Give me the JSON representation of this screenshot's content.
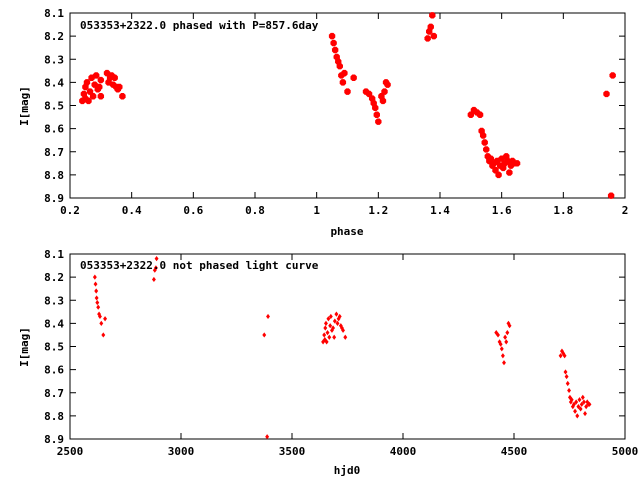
{
  "chart_data": [
    {
      "type": "scatter",
      "title": "053353+2322.0 phased with P=857.6day",
      "xlabel": "phase",
      "ylabel": "I[mag]",
      "xlim": [
        0.2,
        2.0
      ],
      "ylim": [
        8.1,
        8.9
      ],
      "y_inverted": true,
      "grid": false,
      "marker": "star",
      "color": "#ff0000",
      "xticks": [
        "0.2",
        "0.4",
        "0.6",
        "0.8",
        "1",
        "1.2",
        "1.4",
        "1.6",
        "1.8",
        "2"
      ],
      "yticks": [
        "8.1",
        "8.2",
        "8.3",
        "8.4",
        "8.5",
        "8.6",
        "8.7",
        "8.8",
        "8.9"
      ],
      "points": [
        [
          0.24,
          8.48
        ],
        [
          0.245,
          8.45
        ],
        [
          0.25,
          8.47
        ],
        [
          0.25,
          8.42
        ],
        [
          0.255,
          8.4
        ],
        [
          0.26,
          8.48
        ],
        [
          0.265,
          8.44
        ],
        [
          0.27,
          8.38
        ],
        [
          0.275,
          8.46
        ],
        [
          0.28,
          8.41
        ],
        [
          0.285,
          8.37
        ],
        [
          0.29,
          8.43
        ],
        [
          0.295,
          8.42
        ],
        [
          0.3,
          8.46
        ],
        [
          0.3,
          8.39
        ],
        [
          0.32,
          8.36
        ],
        [
          0.325,
          8.4
        ],
        [
          0.33,
          8.38
        ],
        [
          0.335,
          8.37
        ],
        [
          0.34,
          8.41
        ],
        [
          0.345,
          8.38
        ],
        [
          0.35,
          8.42
        ],
        [
          0.355,
          8.43
        ],
        [
          0.36,
          8.42
        ],
        [
          0.37,
          8.46
        ],
        [
          1.05,
          8.2
        ],
        [
          1.055,
          8.23
        ],
        [
          1.06,
          8.26
        ],
        [
          1.065,
          8.29
        ],
        [
          1.07,
          8.31
        ],
        [
          1.075,
          8.33
        ],
        [
          1.08,
          8.37
        ],
        [
          1.085,
          8.4
        ],
        [
          1.09,
          8.36
        ],
        [
          1.1,
          8.44
        ],
        [
          1.12,
          8.38
        ],
        [
          1.16,
          8.44
        ],
        [
          1.17,
          8.45
        ],
        [
          1.18,
          8.47
        ],
        [
          1.185,
          8.49
        ],
        [
          1.19,
          8.51
        ],
        [
          1.195,
          8.54
        ],
        [
          1.2,
          8.57
        ],
        [
          1.21,
          8.46
        ],
        [
          1.215,
          8.48
        ],
        [
          1.22,
          8.44
        ],
        [
          1.225,
          8.4
        ],
        [
          1.23,
          8.41
        ],
        [
          1.36,
          8.21
        ],
        [
          1.365,
          8.18
        ],
        [
          1.37,
          8.16
        ],
        [
          1.375,
          8.11
        ],
        [
          1.38,
          8.2
        ],
        [
          1.5,
          8.54
        ],
        [
          1.51,
          8.52
        ],
        [
          1.52,
          8.53
        ],
        [
          1.53,
          8.54
        ],
        [
          1.535,
          8.61
        ],
        [
          1.54,
          8.63
        ],
        [
          1.545,
          8.66
        ],
        [
          1.55,
          8.69
        ],
        [
          1.555,
          8.72
        ],
        [
          1.56,
          8.74
        ],
        [
          1.565,
          8.73
        ],
        [
          1.57,
          8.76
        ],
        [
          1.575,
          8.75
        ],
        [
          1.58,
          8.78
        ],
        [
          1.585,
          8.74
        ],
        [
          1.59,
          8.8
        ],
        [
          1.595,
          8.76
        ],
        [
          1.6,
          8.73
        ],
        [
          1.605,
          8.77
        ],
        [
          1.61,
          8.75
        ],
        [
          1.615,
          8.72
        ],
        [
          1.62,
          8.74
        ],
        [
          1.625,
          8.79
        ],
        [
          1.63,
          8.76
        ],
        [
          1.635,
          8.74
        ],
        [
          1.64,
          8.75
        ],
        [
          1.65,
          8.75
        ],
        [
          1.94,
          8.45
        ],
        [
          1.955,
          8.89
        ],
        [
          1.96,
          8.37
        ]
      ]
    },
    {
      "type": "scatter",
      "title": "053353+2322.0 not phased light curve",
      "xlabel": "hjd0",
      "ylabel": "I[mag]",
      "xlim": [
        2500,
        5000
      ],
      "ylim": [
        8.1,
        8.9
      ],
      "y_inverted": true,
      "grid": false,
      "marker": "diamond",
      "color": "#ff0000",
      "xticks": [
        "2500",
        "3000",
        "3500",
        "4000",
        "4500",
        "5000"
      ],
      "yticks": [
        "8.1",
        "8.2",
        "8.3",
        "8.4",
        "8.5",
        "8.6",
        "8.7",
        "8.8",
        "8.9"
      ],
      "points": [
        [
          2612,
          8.2
        ],
        [
          2615,
          8.23
        ],
        [
          2618,
          8.26
        ],
        [
          2620,
          8.29
        ],
        [
          2623,
          8.31
        ],
        [
          2627,
          8.33
        ],
        [
          2631,
          8.36
        ],
        [
          2635,
          8.37
        ],
        [
          2641,
          8.4
        ],
        [
          2650,
          8.45
        ],
        [
          2658,
          8.38
        ],
        [
          2878,
          8.21
        ],
        [
          2882,
          8.17
        ],
        [
          2887,
          8.16
        ],
        [
          2890,
          8.12
        ],
        [
          3375,
          8.45
        ],
        [
          3388,
          8.89
        ],
        [
          3392,
          8.37
        ],
        [
          3640,
          8.48
        ],
        [
          3645,
          8.45
        ],
        [
          3648,
          8.47
        ],
        [
          3650,
          8.42
        ],
        [
          3653,
          8.4
        ],
        [
          3656,
          8.48
        ],
        [
          3660,
          8.44
        ],
        [
          3664,
          8.38
        ],
        [
          3668,
          8.46
        ],
        [
          3672,
          8.41
        ],
        [
          3675,
          8.37
        ],
        [
          3680,
          8.43
        ],
        [
          3685,
          8.42
        ],
        [
          3690,
          8.46
        ],
        [
          3693,
          8.39
        ],
        [
          3700,
          8.36
        ],
        [
          3705,
          8.4
        ],
        [
          3710,
          8.38
        ],
        [
          3715,
          8.37
        ],
        [
          3720,
          8.41
        ],
        [
          3725,
          8.42
        ],
        [
          3730,
          8.43
        ],
        [
          3740,
          8.46
        ],
        [
          4420,
          8.44
        ],
        [
          4428,
          8.45
        ],
        [
          4435,
          8.48
        ],
        [
          4440,
          8.49
        ],
        [
          4445,
          8.51
        ],
        [
          4450,
          8.54
        ],
        [
          4455,
          8.57
        ],
        [
          4460,
          8.46
        ],
        [
          4465,
          8.48
        ],
        [
          4470,
          8.44
        ],
        [
          4475,
          8.4
        ],
        [
          4480,
          8.41
        ],
        [
          4710,
          8.54
        ],
        [
          4716,
          8.52
        ],
        [
          4722,
          8.53
        ],
        [
          4728,
          8.54
        ],
        [
          4732,
          8.61
        ],
        [
          4737,
          8.63
        ],
        [
          4742,
          8.66
        ],
        [
          4748,
          8.69
        ],
        [
          4752,
          8.72
        ],
        [
          4756,
          8.74
        ],
        [
          4760,
          8.73
        ],
        [
          4765,
          8.76
        ],
        [
          4770,
          8.75
        ],
        [
          4775,
          8.78
        ],
        [
          4780,
          8.74
        ],
        [
          4785,
          8.8
        ],
        [
          4790,
          8.76
        ],
        [
          4795,
          8.73
        ],
        [
          4800,
          8.77
        ],
        [
          4805,
          8.75
        ],
        [
          4810,
          8.72
        ],
        [
          4815,
          8.74
        ],
        [
          4820,
          8.79
        ],
        [
          4825,
          8.76
        ],
        [
          4830,
          8.74
        ],
        [
          4835,
          8.75
        ],
        [
          4840,
          8.75
        ]
      ]
    }
  ]
}
